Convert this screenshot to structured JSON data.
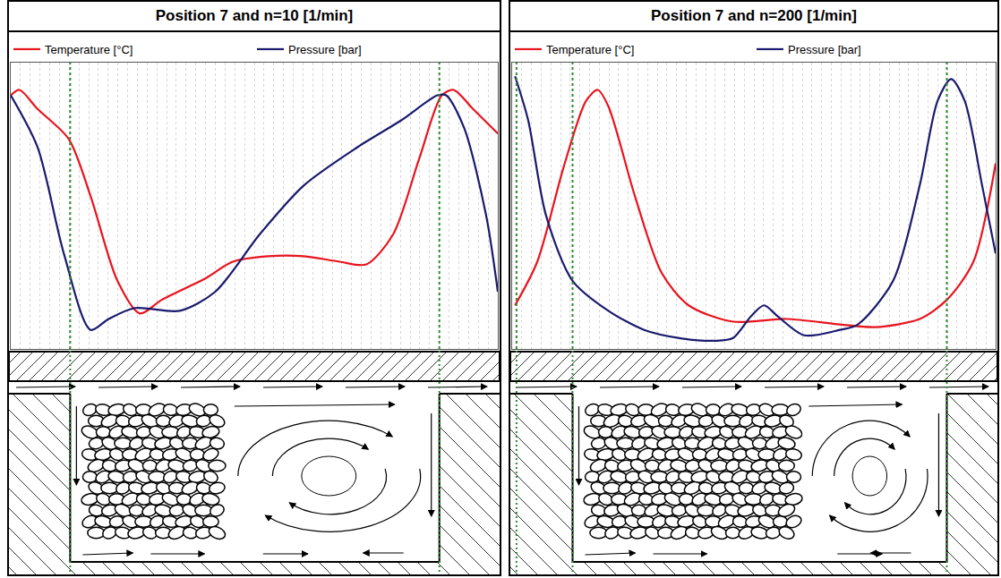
{
  "chart_data": [
    {
      "type": "line",
      "title": "Position 7 and n=10 [1/min]",
      "xlim": [
        0,
        100
      ],
      "ylim": [
        0,
        105
      ],
      "xticks": [
        0,
        2,
        4,
        6,
        8,
        10,
        12,
        14,
        16,
        18,
        20,
        22,
        24,
        26,
        28,
        30,
        32,
        34,
        36,
        38,
        40,
        42,
        44,
        46,
        48,
        50,
        52,
        54,
        56,
        58,
        60,
        62,
        64,
        66,
        68,
        70,
        72,
        74,
        76,
        78,
        80,
        82,
        84,
        86,
        88,
        90,
        92,
        94,
        96,
        98,
        100
      ],
      "grid": true,
      "tick_labels": false,
      "legend": "top",
      "vlines": [
        12.2,
        88.0
      ],
      "series": [
        {
          "name": "Temperature [°C]",
          "color": "#e8141e",
          "x": [
            0,
            1.8,
            5.5,
            11.9,
            16.4,
            21.9,
            26.5,
            31.0,
            40.1,
            45.6,
            52.9,
            60.2,
            67.5,
            73.0,
            78.5,
            83.9,
            88.5,
            90.9,
            94.9,
            100
          ],
          "values": [
            93,
            95,
            88,
            77,
            56,
            25,
            13,
            18,
            26,
            32,
            34,
            34,
            32,
            31,
            42,
            70,
            93,
            95,
            88,
            79
          ]
        },
        {
          "name": "Pressure [bar]",
          "color": "#1a1a6e",
          "x": [
            0,
            5.5,
            10.9,
            16.4,
            20.1,
            25.5,
            34.7,
            42.0,
            51.1,
            60.2,
            71.2,
            80.3,
            87.6,
            89.4,
            93.1,
            97.6,
            100
          ],
          "values": [
            93,
            74,
            35,
            7,
            11,
            15,
            14,
            21,
            42,
            60,
            74,
            84,
            93,
            93,
            81,
            49,
            21
          ]
        }
      ]
    },
    {
      "type": "line",
      "title": "Position 7 and n=200 [1/min]",
      "xlim": [
        0,
        100
      ],
      "ylim": [
        0,
        105
      ],
      "xticks": [
        0,
        2,
        4,
        6,
        8,
        10,
        12,
        14,
        16,
        18,
        20,
        22,
        24,
        26,
        28,
        30,
        32,
        34,
        36,
        38,
        40,
        42,
        44,
        46,
        48,
        50,
        52,
        54,
        56,
        58,
        60,
        62,
        64,
        66,
        68,
        70,
        72,
        74,
        76,
        78,
        80,
        82,
        84,
        86,
        88,
        90,
        92,
        94,
        96,
        98,
        100
      ],
      "grid": true,
      "tick_labels": false,
      "legend": "top",
      "vlines": [
        0.9,
        12.5,
        89.9
      ],
      "series": [
        {
          "name": "Temperature [°C]",
          "color": "#e8141e",
          "x": [
            0.6,
            5.2,
            10.7,
            15.3,
            17.7,
            19.9,
            25.4,
            30.9,
            36.5,
            45.7,
            56.7,
            67.8,
            75.1,
            84.3,
            89.9,
            95.4,
            100
          ],
          "values": [
            16,
            32,
            67,
            91,
            95,
            89,
            56,
            28,
            16,
            10,
            11,
            9,
            8,
            11,
            18,
            32,
            68
          ]
        },
        {
          "name": "Pressure [bar]",
          "color": "#1a1a6e",
          "x": [
            0.6,
            3.3,
            7.0,
            12.5,
            19.9,
            27.3,
            34.6,
            42.0,
            45.7,
            49.4,
            52.1,
            54.9,
            60.4,
            67.8,
            71.5,
            78.8,
            84.3,
            88.0,
            90.8,
            93.6,
            97.2,
            100
          ],
          "values": [
            100,
            84,
            49,
            25,
            14,
            7,
            4,
            3,
            4,
            12,
            16,
            12,
            5,
            7,
            9,
            25,
            60,
            91,
            99,
            91,
            60,
            35
          ]
        }
      ]
    }
  ]
}
